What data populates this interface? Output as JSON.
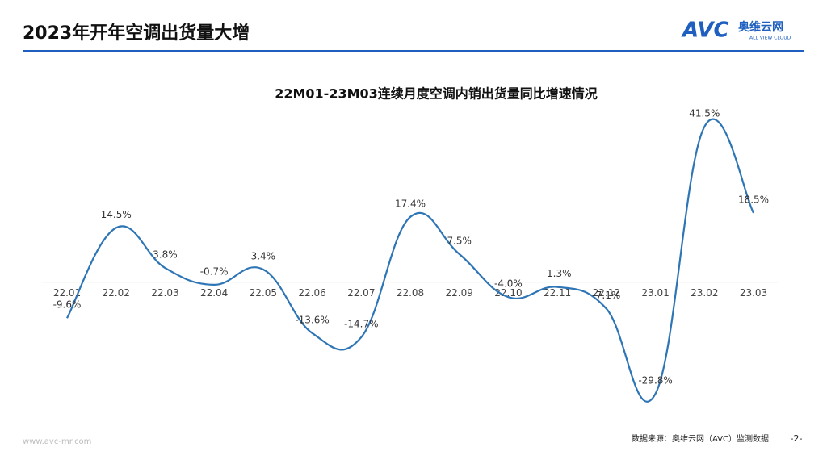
{
  "header": {
    "title": "2023年开年空调出货量大增",
    "logo_mark": "AVC",
    "logo_name": "奥维云网",
    "logo_tagline": "ALL VIEW CLOUD"
  },
  "chart_data": {
    "type": "line",
    "title": "22M01-23M03连续月度空调内销出货量同比增速情况",
    "categories": [
      "22.01",
      "22.02",
      "22.03",
      "22.04",
      "22.05",
      "22.06",
      "22.07",
      "22.08",
      "22.09",
      "22.10",
      "22.11",
      "22.12",
      "23.01",
      "23.02",
      "23.03"
    ],
    "series": [
      {
        "color": "#2e75b6",
        "values": [
          -9.6,
          14.5,
          3.8,
          -0.7,
          3.4,
          -13.6,
          -14.7,
          17.4,
          7.5,
          -4.0,
          -1.3,
          -7.1,
          -29.8,
          41.5,
          18.5
        ],
        "value_labels": [
          "-9.6%",
          "14.5%",
          "3.8%",
          "-0.7%",
          "3.4%",
          "-13.6%",
          "-14.7%",
          "17.4%",
          "7.5%",
          "-4.0%",
          "-1.3%",
          "-7.1%",
          "-29.8%",
          "41.5%",
          "18.5%"
        ]
      }
    ]
  },
  "footer": {
    "website": "www.avc-mr.com",
    "source": "数据来源：奥维云网（AVC）监测数据",
    "page": "-2-"
  }
}
